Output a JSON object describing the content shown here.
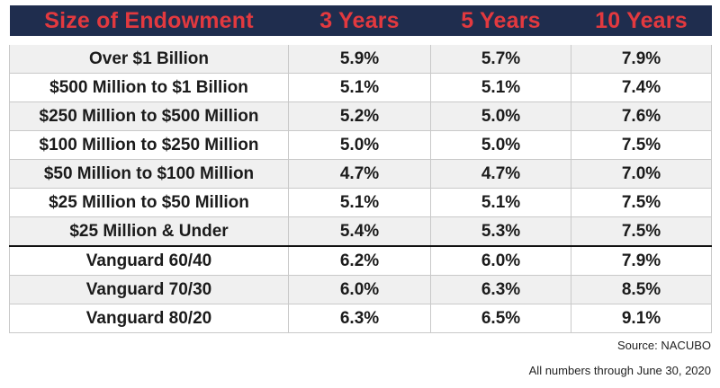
{
  "chart_data": {
    "type": "table",
    "columns": [
      "Size of Endowment",
      "3 Years",
      "5 Years",
      "10 Years"
    ],
    "rows": [
      {
        "label": "Over $1 Billion",
        "values": [
          "5.9%",
          "5.7%",
          "7.9%"
        ]
      },
      {
        "label": "$500 Million to $1 Billion",
        "values": [
          "5.1%",
          "5.1%",
          "7.4%"
        ]
      },
      {
        "label": "$250 Million to $500 Million",
        "values": [
          "5.2%",
          "5.0%",
          "7.6%"
        ]
      },
      {
        "label": "$100 Million to $250 Million",
        "values": [
          "5.0%",
          "5.0%",
          "7.5%"
        ]
      },
      {
        "label": "$50 Million to $100 Million",
        "values": [
          "4.7%",
          "4.7%",
          "7.0%"
        ]
      },
      {
        "label": "$25 Million to $50 Million",
        "values": [
          "5.1%",
          "5.1%",
          "7.5%"
        ]
      },
      {
        "label": "$25 Million & Under",
        "values": [
          "5.4%",
          "5.3%",
          "7.5%"
        ]
      },
      {
        "label": "Vanguard 60/40",
        "values": [
          "6.2%",
          "6.0%",
          "7.9%"
        ]
      },
      {
        "label": "Vanguard 70/30",
        "values": [
          "6.0%",
          "6.3%",
          "8.5%"
        ]
      },
      {
        "label": "Vanguard 80/20",
        "values": [
          "6.3%",
          "6.5%",
          "9.1%"
        ]
      }
    ],
    "source": "Source: NACUBO",
    "note": "All numbers through June 30, 2020",
    "colors": {
      "header_bg": "#1f2d4e",
      "header_text": "#e2393f",
      "row_shade": "#f0f0f0",
      "row_plain": "#ffffff"
    }
  }
}
